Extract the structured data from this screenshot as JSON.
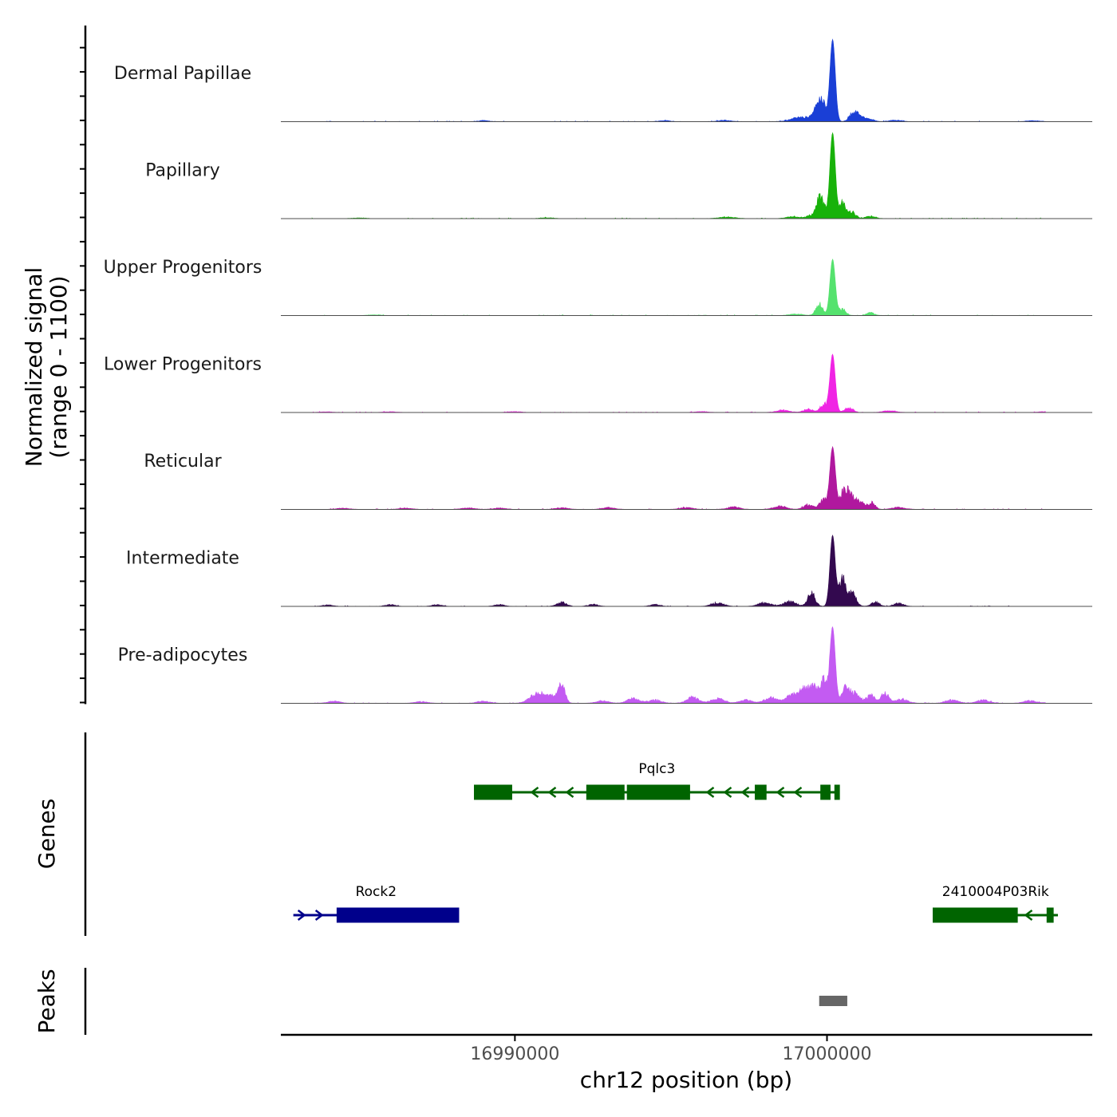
{
  "chart_data": {
    "type": "genome-coverage",
    "chromosome": "chr12",
    "xlabel": "chr12 position (bp)",
    "xlim": [
      16982500,
      17008500
    ],
    "xticks": [
      16990000,
      17000000
    ],
    "xtick_labels": [
      "16990000",
      "17000000"
    ],
    "coverage": {
      "ylabel": "Normalized signal",
      "ylabel_range": "(range 0 - 1100)",
      "ylim": [
        0,
        1100
      ],
      "main_peak_position": 17000180,
      "tracks": [
        {
          "name": "Dermal Papillae",
          "color": "#1a3fd6",
          "peak": 1050,
          "features": [
            [
              16989000,
              14,
              150
            ],
            [
              16994800,
              14,
              150
            ],
            [
              16996700,
              16,
              200
            ],
            [
              16999200,
              55,
              320
            ],
            [
              16999650,
              120,
              120
            ],
            [
              16999850,
              260,
              110
            ],
            [
              17000850,
              110,
              130
            ],
            [
              17001050,
              50,
              150
            ],
            [
              17001350,
              32,
              150
            ],
            [
              17002200,
              18,
              200
            ],
            [
              17006600,
              12,
              200
            ]
          ]
        },
        {
          "name": "Papillary",
          "color": "#18b20a",
          "peak": 1100,
          "features": [
            [
              16985000,
              8,
              200
            ],
            [
              16991000,
              10,
              200
            ],
            [
              16996800,
              20,
              250
            ],
            [
              16998900,
              25,
              200
            ],
            [
              16999500,
              40,
              150
            ],
            [
              16999750,
              230,
              100
            ],
            [
              16999900,
              100,
              100
            ],
            [
              17000500,
              200,
              100
            ],
            [
              17000800,
              80,
              120
            ],
            [
              17001400,
              30,
              150
            ]
          ]
        },
        {
          "name": "Upper Progenitors",
          "color": "#55e26e",
          "peak": 720,
          "features": [
            [
              16985500,
              8,
              200
            ],
            [
              16999000,
              20,
              200
            ],
            [
              16999750,
              140,
              110
            ],
            [
              17000500,
              80,
              110
            ],
            [
              17001400,
              35,
              120
            ]
          ]
        },
        {
          "name": "Lower Progenitors",
          "color": "#f024e4",
          "peak": 740,
          "features": [
            [
              16984000,
              8,
              200
            ],
            [
              16986000,
              8,
              200
            ],
            [
              16990000,
              10,
              200
            ],
            [
              16996000,
              10,
              200
            ],
            [
              16998600,
              28,
              200
            ],
            [
              16999400,
              40,
              150
            ],
            [
              16999900,
              100,
              120
            ],
            [
              17000700,
              60,
              130
            ],
            [
              17002000,
              20,
              200
            ],
            [
              17007000,
              10,
              200
            ]
          ]
        },
        {
          "name": "Reticular",
          "color": "#b0189e",
          "peak": 780,
          "features": [
            [
              16984500,
              15,
              200
            ],
            [
              16986500,
              15,
              200
            ],
            [
              16988500,
              18,
              200
            ],
            [
              16989500,
              15,
              200
            ],
            [
              16991500,
              20,
              200
            ],
            [
              16993000,
              22,
              200
            ],
            [
              16995500,
              22,
              200
            ],
            [
              16997000,
              30,
              200
            ],
            [
              16998500,
              40,
              200
            ],
            [
              16999400,
              60,
              150
            ],
            [
              16999900,
              140,
              120
            ],
            [
              17000600,
              250,
              170
            ],
            [
              17001000,
              100,
              200
            ],
            [
              17001450,
              75,
              100
            ],
            [
              17002300,
              25,
              200
            ]
          ]
        },
        {
          "name": "Intermediate",
          "color": "#33094f",
          "peak": 910,
          "features": [
            [
              16984000,
              18,
              150
            ],
            [
              16986000,
              22,
              150
            ],
            [
              16987500,
              20,
              150
            ],
            [
              16989500,
              22,
              150
            ],
            [
              16991500,
              48,
              150
            ],
            [
              16992500,
              25,
              150
            ],
            [
              16994500,
              25,
              150
            ],
            [
              16996500,
              40,
              200
            ],
            [
              16998000,
              45,
              200
            ],
            [
              16998800,
              60,
              200
            ],
            [
              16999500,
              160,
              120
            ],
            [
              17000500,
              380,
              100
            ],
            [
              17000800,
              160,
              130
            ],
            [
              17001550,
              55,
              130
            ],
            [
              17002300,
              40,
              150
            ]
          ]
        },
        {
          "name": "Pre-adipocytes",
          "color": "#c35bf2",
          "peak": 970,
          "features": [
            [
              16984200,
              25,
              200
            ],
            [
              16987000,
              20,
              200
            ],
            [
              16989000,
              25,
              200
            ],
            [
              16990600,
              80,
              200
            ],
            [
              16990900,
              80,
              200
            ],
            [
              16991500,
              210,
              110
            ],
            [
              16991200,
              70,
              160
            ],
            [
              16992800,
              30,
              200
            ],
            [
              16993800,
              60,
              200
            ],
            [
              16994500,
              40,
              200
            ],
            [
              16995700,
              70,
              200
            ],
            [
              16996500,
              60,
              200
            ],
            [
              16997400,
              40,
              200
            ],
            [
              16998200,
              70,
              200
            ],
            [
              16998900,
              110,
              200
            ],
            [
              16999300,
              170,
              150
            ],
            [
              16999600,
              190,
              120
            ],
            [
              16999900,
              280,
              110
            ],
            [
              17000600,
              200,
              120
            ],
            [
              17000900,
              120,
              150
            ],
            [
              17001400,
              100,
              130
            ],
            [
              17001850,
              130,
              120
            ],
            [
              17002400,
              50,
              200
            ],
            [
              17004000,
              40,
              200
            ],
            [
              17005000,
              40,
              200
            ],
            [
              17006500,
              30,
              200
            ],
            [
              17007300,
              25,
              200
            ]
          ]
        }
      ]
    },
    "genes": {
      "ylabel": "Genes",
      "items": [
        {
          "name": "Pqlc3",
          "color": "#006400",
          "strand": "-",
          "start": 16988700,
          "end": 17000400,
          "row": 0,
          "exons": [
            [
              16988700,
              16989900
            ],
            [
              16992300,
              16992800
            ],
            [
              16992800,
              16993500
            ],
            [
              16993600,
              16995600
            ],
            [
              16997700,
              16998050
            ],
            [
              16999800,
              17000100
            ],
            [
              17000250,
              17000400
            ]
          ]
        },
        {
          "name": "Rock2",
          "color": "#00008b",
          "strand": "+",
          "start": 16982900,
          "end": 16988200,
          "row": 1,
          "exons": [
            [
              16984300,
              16988200
            ]
          ]
        },
        {
          "name": "2410004P03Rik",
          "color": "#006400",
          "strand": "-",
          "start": 17003400,
          "end": 17007400,
          "row": 1,
          "exons": [
            [
              17003400,
              17005800
            ],
            [
              17005800,
              17006100
            ],
            [
              17007050,
              17007250
            ]
          ]
        }
      ]
    },
    "peaks": {
      "ylabel": "Peaks",
      "color": "#666666",
      "items": [
        [
          16999750,
          17000650
        ]
      ]
    }
  }
}
